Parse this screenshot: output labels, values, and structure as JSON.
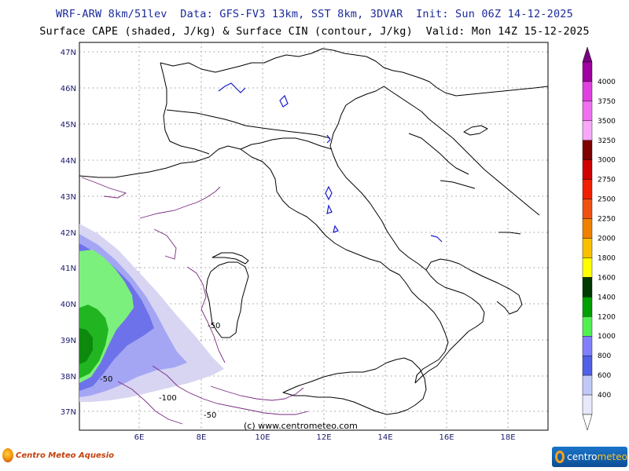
{
  "header": {
    "line1": "WRF-ARW 8km/51lev  Data: GFS-FV3 13km, SST 8km, 3DVAR  Init: Sun 06Z 14-12-2025",
    "line2": "Surface CAPE (shaded, J/kg) & Surface CIN (contour, J/kg)  Valid: Mon 14Z 15-12-2025"
  },
  "map": {
    "latitude_labels": [
      "47N",
      "46N",
      "45N",
      "44N",
      "43N",
      "42N",
      "41N",
      "40N",
      "39N",
      "38N",
      "37N"
    ],
    "longitude_labels": [
      "6E",
      "8E",
      "10E",
      "12E",
      "14E",
      "16E",
      "18E"
    ],
    "copyright": "(c) www.centrometeo.com",
    "cin_contour_labels": [
      "-50",
      "-50",
      "-100",
      "-50"
    ],
    "colors": {
      "coastline": "#000000",
      "cin_contour": "#7a2a80",
      "cape_low": "#d7d5f2",
      "cape_mid": "#7a7ef0",
      "cape_high": "#3a3fd8",
      "cape_green": "#7cf07c",
      "cape_green_dark": "#22b522"
    }
  },
  "legend": {
    "levels": [
      "4000",
      "3750",
      "3500",
      "3250",
      "3000",
      "2750",
      "2500",
      "2250",
      "2000",
      "1800",
      "1600",
      "1400",
      "1200",
      "1000",
      "800",
      "600",
      "400"
    ],
    "colors": [
      "#a000a0",
      "#e040e0",
      "#f070f0",
      "#f8a8f8",
      "#800000",
      "#d00000",
      "#f02000",
      "#f05010",
      "#f08000",
      "#f8c000",
      "#ffff00",
      "#003a00",
      "#00a000",
      "#50f050",
      "#8080ff",
      "#5060e8",
      "#c0c8f8",
      "#e8e8fc"
    ]
  },
  "logos": {
    "left": "Centro Meteo Aquesio",
    "right_a": "centro",
    "right_b": "meteo"
  }
}
